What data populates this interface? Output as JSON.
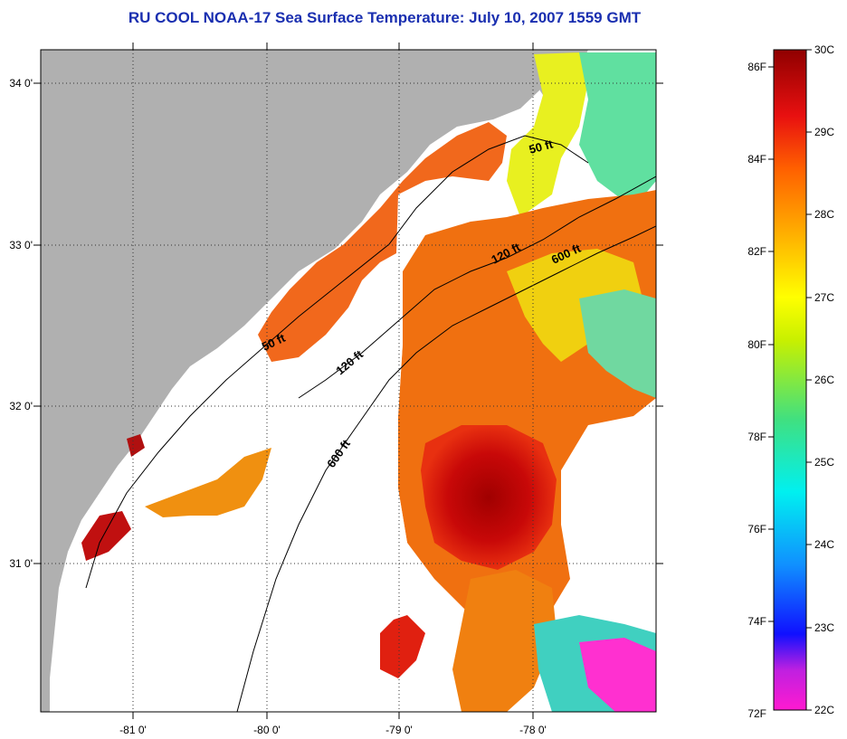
{
  "title": "RU COOL  NOAA-17  Sea Surface Temperature:  July 10, 2007 1559 GMT",
  "map": {
    "lat_labels": [
      "34 0'",
      "33 0'",
      "32 0'",
      "31 0'"
    ],
    "lon_labels": [
      "-81 0'",
      "-80 0'",
      "-79 0'",
      "-78 0'"
    ],
    "contour_labels": [
      "50 ft",
      "120 ft",
      "600 ft",
      "50 ft",
      "120 ft",
      "600 ft"
    ],
    "colors": {
      "land": "#b0b0b0",
      "ocean_no_data": "#ffffff",
      "gridlines": "dotted black"
    }
  },
  "colorbar": {
    "fahrenheit_labels": [
      "86F",
      "84F",
      "82F",
      "80F",
      "78F",
      "76F",
      "74F",
      "72F"
    ],
    "celsius_labels": [
      "30C",
      "29C",
      "28C",
      "27C",
      "26C",
      "25C",
      "24C",
      "23C",
      "22C"
    ],
    "range_c": [
      22,
      30
    ],
    "range_f": [
      72,
      86
    ]
  }
}
